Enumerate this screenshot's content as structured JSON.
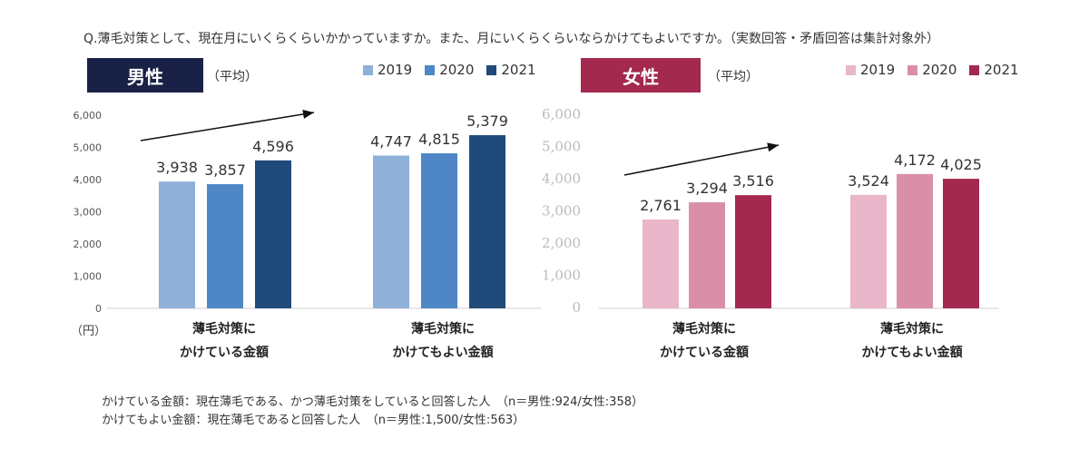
{
  "question": "Q.薄毛対策として、現在月にいくらくらいかかっていますか。また、月にいくらくらいならかけてもよいですか。（実数回答・矛盾回答は集計対象外）",
  "unit_label": "（円）",
  "colors": {
    "male_header": "#1a2147",
    "female_header": "#a3294f",
    "male": [
      "#8fb0d9",
      "#4f86c6",
      "#1f4a7a"
    ],
    "female": [
      "#e9b7c9",
      "#da8fa8",
      "#a3294f"
    ],
    "axis_text": "#555555",
    "female_axis_text": "#bbbbbb"
  },
  "footnotes": [
    "かけている金額：現在薄毛である、かつ薄毛対策をしていると回答した人　（n＝男性:924/女性:358）",
    "かけてもよい金額：現在薄毛であると回答した人　（n＝男性:1,500/女性:563）"
  ],
  "chart_data": [
    {
      "type": "bar",
      "title": "男性",
      "subtitle": "（平均）",
      "categories": [
        [
          "薄毛対策に",
          "かけている金額"
        ],
        [
          "薄毛対策に",
          "かけてもよい金額"
        ]
      ],
      "series": [
        {
          "name": "2019",
          "values": [
            3938,
            4747
          ]
        },
        {
          "name": "2020",
          "values": [
            3857,
            4815
          ]
        },
        {
          "name": "2021",
          "values": [
            4596,
            5379
          ]
        }
      ],
      "value_labels": [
        [
          "3,938",
          "4,747"
        ],
        [
          "3,857",
          "4,815"
        ],
        [
          "4,596",
          "5,379"
        ]
      ],
      "yticks": [
        "0",
        "1,000",
        "2,000",
        "3,000",
        "4,000",
        "5,000",
        "6,000"
      ],
      "ylim": [
        0,
        6000
      ],
      "legend": "top"
    },
    {
      "type": "bar",
      "title": "女性",
      "subtitle": "（平均）",
      "categories": [
        [
          "薄毛対策に",
          "かけている金額"
        ],
        [
          "薄毛対策に",
          "かけてもよい金額"
        ]
      ],
      "series": [
        {
          "name": "2019",
          "values": [
            2761,
            3524
          ]
        },
        {
          "name": "2020",
          "values": [
            3294,
            4172
          ]
        },
        {
          "name": "2021",
          "values": [
            3516,
            4025
          ]
        }
      ],
      "value_labels": [
        [
          "2,761",
          "3,524"
        ],
        [
          "3,294",
          "4,172"
        ],
        [
          "3,516",
          "4,025"
        ]
      ],
      "yticks": [
        "0",
        "1,000",
        "2,000",
        "3,000",
        "4,000",
        "5,000",
        "6,000"
      ],
      "ylim": [
        0,
        6000
      ],
      "legend": "top"
    }
  ]
}
